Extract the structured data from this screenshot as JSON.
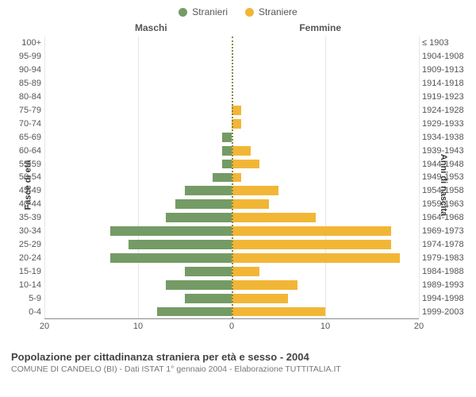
{
  "chart": {
    "type": "population-pyramid",
    "background_color": "#ffffff",
    "grid_color": "#e6e6e6",
    "centerline_color": "#888844",
    "legend": {
      "male": {
        "label": "Stranieri",
        "color": "#749b65"
      },
      "female": {
        "label": "Straniere",
        "color": "#f2b636"
      }
    },
    "column_headers": {
      "male": "Maschi",
      "female": "Femmine"
    },
    "y_left_title": "Fasce di età",
    "y_right_title": "Anni di nascita",
    "x_max": 20,
    "x_ticks": [
      20,
      10,
      0,
      10,
      20
    ],
    "label_fontsize": 11,
    "tick_fontsize": 11,
    "bar_fill_ratio": 0.7,
    "rows": [
      {
        "age": "100+",
        "birth": "≤ 1903",
        "m": 0,
        "f": 0
      },
      {
        "age": "95-99",
        "birth": "1904-1908",
        "m": 0,
        "f": 0
      },
      {
        "age": "90-94",
        "birth": "1909-1913",
        "m": 0,
        "f": 0
      },
      {
        "age": "85-89",
        "birth": "1914-1918",
        "m": 0,
        "f": 0
      },
      {
        "age": "80-84",
        "birth": "1919-1923",
        "m": 0,
        "f": 0
      },
      {
        "age": "75-79",
        "birth": "1924-1928",
        "m": 0,
        "f": 1
      },
      {
        "age": "70-74",
        "birth": "1929-1933",
        "m": 0,
        "f": 1
      },
      {
        "age": "65-69",
        "birth": "1934-1938",
        "m": 1,
        "f": 0
      },
      {
        "age": "60-64",
        "birth": "1939-1943",
        "m": 1,
        "f": 2
      },
      {
        "age": "55-59",
        "birth": "1944-1948",
        "m": 1,
        "f": 3
      },
      {
        "age": "50-54",
        "birth": "1949-1953",
        "m": 2,
        "f": 1
      },
      {
        "age": "45-49",
        "birth": "1954-1958",
        "m": 5,
        "f": 5
      },
      {
        "age": "40-44",
        "birth": "1959-1963",
        "m": 6,
        "f": 4
      },
      {
        "age": "35-39",
        "birth": "1964-1968",
        "m": 7,
        "f": 9
      },
      {
        "age": "30-34",
        "birth": "1969-1973",
        "m": 13,
        "f": 17
      },
      {
        "age": "25-29",
        "birth": "1974-1978",
        "m": 11,
        "f": 17
      },
      {
        "age": "20-24",
        "birth": "1979-1983",
        "m": 13,
        "f": 18
      },
      {
        "age": "15-19",
        "birth": "1984-1988",
        "m": 5,
        "f": 3
      },
      {
        "age": "10-14",
        "birth": "1989-1993",
        "m": 7,
        "f": 7
      },
      {
        "age": "5-9",
        "birth": "1994-1998",
        "m": 5,
        "f": 6
      },
      {
        "age": "0-4",
        "birth": "1999-2003",
        "m": 8,
        "f": 10
      }
    ]
  },
  "footer": {
    "title": "Popolazione per cittadinanza straniera per età e sesso - 2004",
    "subtitle": "COMUNE DI CANDELO (BI) - Dati ISTAT 1° gennaio 2004 - Elaborazione TUTTITALIA.IT"
  }
}
